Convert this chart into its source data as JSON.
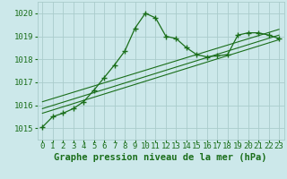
{
  "bg_color": "#cce8ea",
  "grid_color": "#aacccc",
  "line_color": "#1a6e1a",
  "marker_color": "#1a6e1a",
  "xlabel": "Graphe pression niveau de la mer (hPa)",
  "xlabel_fontsize": 7.5,
  "tick_fontsize": 6.5,
  "xlim": [
    -0.5,
    23.5
  ],
  "ylim": [
    1014.5,
    1020.5
  ],
  "yticks": [
    1015,
    1016,
    1017,
    1018,
    1019,
    1020
  ],
  "xticks": [
    0,
    1,
    2,
    3,
    4,
    5,
    6,
    7,
    8,
    9,
    10,
    11,
    12,
    13,
    14,
    15,
    16,
    17,
    18,
    19,
    20,
    21,
    22,
    23
  ],
  "series_main": {
    "x": [
      0,
      1,
      2,
      3,
      4,
      5,
      6,
      7,
      8,
      9,
      10,
      11,
      12,
      13,
      14,
      15,
      16,
      17,
      18,
      19,
      20,
      21,
      22,
      23
    ],
    "y": [
      1015.05,
      1015.5,
      1015.65,
      1015.85,
      1016.15,
      1016.65,
      1017.2,
      1017.75,
      1018.35,
      1019.35,
      1020.0,
      1019.8,
      1019.0,
      1018.9,
      1018.5,
      1018.2,
      1018.1,
      1018.15,
      1018.2,
      1019.05,
      1019.15,
      1019.15,
      1019.05,
      1018.9
    ]
  },
  "straight_lines": [
    {
      "x": [
        0,
        23
      ],
      "y": [
        1015.65,
        1018.85
      ]
    },
    {
      "x": [
        0,
        23
      ],
      "y": [
        1015.85,
        1019.05
      ]
    },
    {
      "x": [
        0,
        23
      ],
      "y": [
        1016.15,
        1019.3
      ]
    }
  ]
}
